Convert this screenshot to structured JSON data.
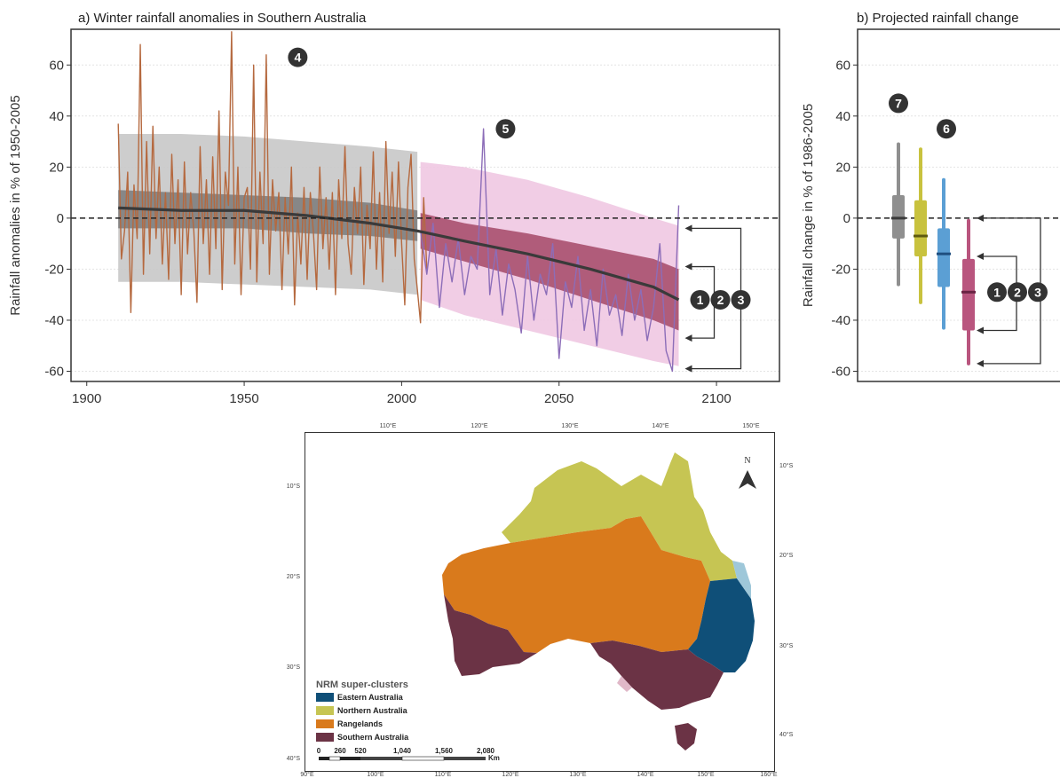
{
  "chart_data": [
    {
      "type": "line",
      "title": "a) Winter rainfall anomalies in Southern Australia",
      "xlabel": "",
      "ylabel": "Rainfall anomalies in % of 1950-2005",
      "xlim": [
        1895,
        2120
      ],
      "ylim": [
        -64,
        74
      ],
      "xticks": [
        1900,
        1950,
        2000,
        2050,
        2100
      ],
      "yticks": [
        60,
        40,
        20,
        0,
        -20,
        -40,
        -60
      ],
      "grid": true,
      "reference_line": 0,
      "series": [
        {
          "name": "",
          "color": "#b5693f",
          "x": [
            1910,
            1911,
            1912,
            1913,
            1914,
            1915,
            1916,
            1917,
            1918,
            1919,
            1920,
            1921,
            1922,
            1923,
            1924,
            1925,
            1926,
            1927,
            1928,
            1929,
            1930,
            1931,
            1932,
            1933,
            1934,
            1935,
            1936,
            1937,
            1938,
            1939,
            1940,
            1941,
            1942,
            1943,
            1944,
            1945,
            1946,
            1947,
            1948,
            1949,
            1950,
            1951,
            1952,
            1953,
            1954,
            1955,
            1956,
            1957,
            1958,
            1959,
            1960,
            1961,
            1962,
            1963,
            1964,
            1965,
            1966,
            1967,
            1968,
            1969,
            1970,
            1971,
            1972,
            1973,
            1974,
            1975,
            1976,
            1977,
            1978,
            1979,
            1980,
            1981,
            1982,
            1983,
            1984,
            1985,
            1986,
            1987,
            1988,
            1989,
            1990,
            1991,
            1992,
            1993,
            1994,
            1995,
            1996,
            1997,
            1998,
            1999,
            2000,
            2001,
            2002,
            2003,
            2004,
            2005,
            2006,
            2007,
            2008
          ],
          "values": [
            37,
            -16,
            -5,
            18,
            -37,
            13,
            -8,
            68,
            -22,
            30,
            -14,
            36,
            -8,
            20,
            -18,
            10,
            -24,
            25,
            -10,
            15,
            -30,
            22,
            -14,
            10,
            -5,
            -33,
            28,
            -10,
            15,
            -22,
            24,
            -12,
            42,
            -28,
            18,
            5,
            73,
            -18,
            20,
            -30,
            8,
            12,
            -20,
            60,
            -25,
            18,
            -10,
            64,
            -22,
            15,
            -5,
            10,
            -28,
            8,
            -14,
            20,
            -34,
            2,
            -18,
            12,
            -24,
            10,
            -6,
            -28,
            20,
            -12,
            8,
            -20,
            10,
            -30,
            15,
            -8,
            28,
            -10,
            -22,
            12,
            -6,
            20,
            -26,
            5,
            -12,
            26,
            -20,
            10,
            -25,
            30,
            -6,
            18,
            -15,
            22,
            -10,
            -34,
            12,
            25,
            -16,
            -28,
            -41,
            8,
            -20
          ]
        },
        {
          "name": "",
          "color": "#8c6db8",
          "x": [
            2006,
            2008,
            2010,
            2012,
            2014,
            2016,
            2018,
            2020,
            2022,
            2024,
            2026,
            2028,
            2030,
            2032,
            2034,
            2036,
            2038,
            2040,
            2042,
            2044,
            2046,
            2048,
            2050,
            2052,
            2054,
            2056,
            2058,
            2060,
            2062,
            2064,
            2066,
            2068,
            2070,
            2072,
            2074,
            2076,
            2078,
            2080,
            2082,
            2084,
            2086,
            2088
          ],
          "values": [
            -5,
            -22,
            -2,
            -35,
            -10,
            -25,
            -8,
            -30,
            -15,
            -20,
            35,
            -30,
            -12,
            -38,
            -18,
            -28,
            -45,
            -15,
            -40,
            -22,
            -30,
            -10,
            -55,
            -25,
            -35,
            -15,
            -44,
            -28,
            -50,
            -20,
            -38,
            -30,
            -46,
            -22,
            -40,
            -28,
            -48,
            -35,
            -10,
            -52,
            -60,
            5
          ]
        },
        {
          "name": "",
          "color": "#3a3a3a",
          "x": [
            1910,
            1930,
            1950,
            1970,
            1990,
            2005,
            2020,
            2040,
            2060,
            2080,
            2088
          ],
          "values": [
            4,
            3,
            3,
            1,
            -2,
            -5,
            -9,
            -14,
            -20,
            -27,
            -32
          ]
        }
      ],
      "bands": [
        {
          "name": "",
          "color": "#c8c8c8",
          "x": [
            1910,
            1930,
            1950,
            1970,
            1990,
            2005
          ],
          "lower": [
            -25,
            -25,
            -26,
            -27,
            -28,
            -30
          ],
          "upper": [
            33,
            33,
            32,
            30,
            28,
            26
          ]
        },
        {
          "name": "",
          "color": "#808080",
          "x": [
            1910,
            1930,
            1950,
            1970,
            1990,
            2005
          ],
          "lower": [
            -4,
            -4,
            -4,
            -6,
            -7,
            -9
          ],
          "upper": [
            11,
            10,
            9,
            8,
            6,
            3
          ]
        },
        {
          "name": "",
          "color": "#f0c8e2",
          "x": [
            2006,
            2020,
            2040,
            2060,
            2080,
            2088
          ],
          "lower": [
            -32,
            -38,
            -44,
            -50,
            -56,
            -58
          ],
          "upper": [
            22,
            20,
            15,
            8,
            0,
            -3
          ]
        },
        {
          "name": "",
          "color": "#a8506e",
          "x": [
            2006,
            2020,
            2040,
            2060,
            2080,
            2088
          ],
          "lower": [
            -12,
            -17,
            -24,
            -32,
            -40,
            -44
          ],
          "upper": [
            2,
            -2,
            -6,
            -11,
            -16,
            -20
          ]
        }
      ],
      "annotations": {
        "badges": [
          {
            "label": "4",
            "x": 1967,
            "y": 63
          },
          {
            "label": "5",
            "x": 2033,
            "y": 35
          }
        ],
        "end_labels": [
          "1",
          "2",
          "3"
        ],
        "brackets": [
          {
            "inner": [
              -19,
              -47
            ],
            "outer": [
              -4,
              -59
            ]
          }
        ]
      }
    },
    {
      "type": "box",
      "title": "b) Projected rainfall change",
      "xlabel": "",
      "ylabel": "Rainfall change in % of 1986-2005",
      "ylim": [
        -64,
        74
      ],
      "yticks": [
        60,
        40,
        20,
        0,
        -20,
        -40,
        -60
      ],
      "grid": true,
      "reference_line": 0,
      "boxes": [
        {
          "color": "#8f8f8f",
          "median_color": "#3a3a3a",
          "whisker": [
            -26,
            29
          ],
          "box": [
            -8,
            9
          ],
          "median": 0
        },
        {
          "color": "#c8c23e",
          "median_color": "#5e5a10",
          "whisker": [
            -33,
            27
          ],
          "box": [
            -15,
            7
          ],
          "median": -7
        },
        {
          "color": "#5b9fd4",
          "median_color": "#1f4f80",
          "whisker": [
            -43,
            15
          ],
          "box": [
            -27,
            -4
          ],
          "median": -14
        },
        {
          "color": "#b9557e",
          "median_color": "#6a2343",
          "whisker": [
            -57,
            -1
          ],
          "box": [
            -44,
            -16
          ],
          "median": -29
        }
      ],
      "annotations": {
        "badges": [
          {
            "label": "7",
            "x": 1,
            "y": 45
          },
          {
            "label": "6",
            "x": 2.6,
            "y": 35
          }
        ],
        "end_labels": [
          "1",
          "2",
          "3"
        ]
      }
    }
  ],
  "map": {
    "legend_title": "NRM super-clusters",
    "legend_items": [
      {
        "label": "Eastern Australia",
        "color": "#0f4f78"
      },
      {
        "label": "Northern Australia",
        "color": "#c6c553"
      },
      {
        "label": "Rangelands",
        "color": "#d97a1c"
      },
      {
        "label": "Southern Australia",
        "color": "#6b3345"
      }
    ],
    "north_label": "N",
    "top_ticks": [
      "110°E",
      "120°E",
      "130°E",
      "140°E",
      "150°E"
    ],
    "bottom_ticks": [
      "90°E",
      "100°E",
      "110°E",
      "120°E",
      "130°E",
      "140°E",
      "150°E",
      "160°E"
    ],
    "left_ticks": [
      "10°S",
      "20°S",
      "30°S",
      "40°S"
    ],
    "right_ticks": [
      "10°S",
      "20°S",
      "30°S",
      "40°S"
    ],
    "scale_labels": [
      "0",
      "260",
      "520",
      "1,040",
      "1,560",
      "2,080"
    ],
    "scale_unit": "Km"
  }
}
